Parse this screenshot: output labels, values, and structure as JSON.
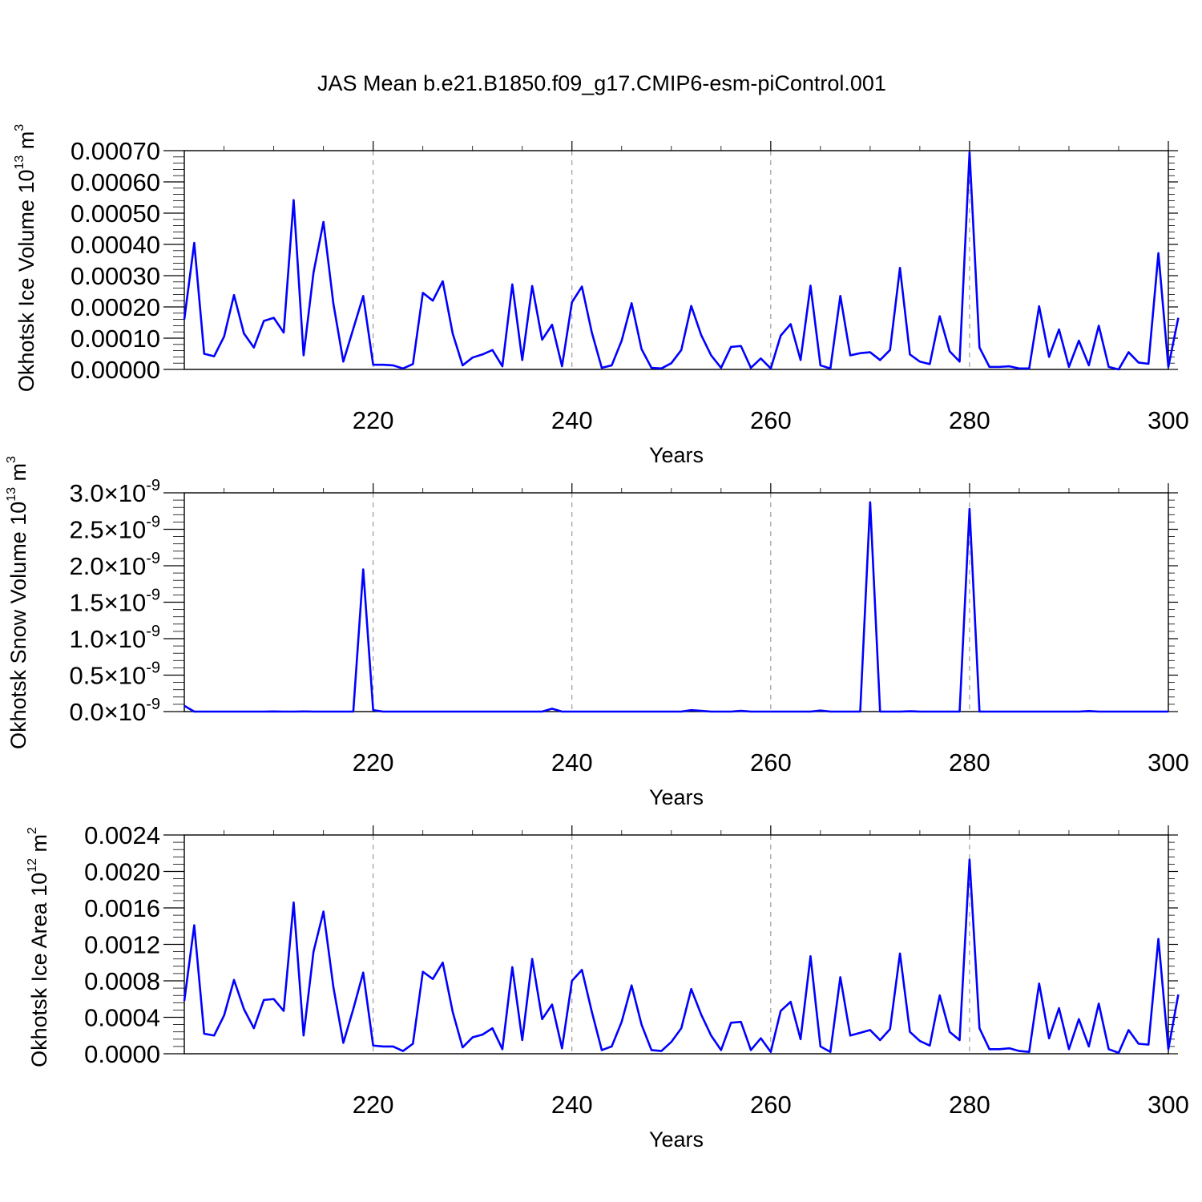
{
  "title": "JAS Mean b.e21.B1850.f09_g17.CMIP6-esm-piControl.001",
  "line_color": "#0000ff",
  "chart_data": [
    {
      "type": "line",
      "id": "ice-volume",
      "xlabel": "Years",
      "ylabel": "Okhotsk Ice Volume 10",
      "ylabel_exp": "13",
      "ylabel_unit": " m",
      "ylabel_unit_exp": "3",
      "xlim": [
        201,
        300
      ],
      "ylim": [
        0,
        0.0007
      ],
      "x_ticks": [
        "220",
        "240",
        "260",
        "280",
        "300"
      ],
      "y_ticks": [
        "0.00000",
        "0.00010",
        "0.00020",
        "0.00030",
        "0.00040",
        "0.00050",
        "0.00060",
        "0.00070"
      ],
      "grid": "dashed vertical at major x ticks",
      "x_start": 201,
      "values": [
        0.00016,
        0.000405,
        5e-05,
        4.2e-05,
        0.000105,
        0.000238,
        0.000115,
        7e-05,
        0.000155,
        0.000165,
        0.000118,
        0.000542,
        4.5e-05,
        0.00031,
        0.000472,
        0.00021,
        2.5e-05,
        0.00013,
        0.000235,
        1.5e-05,
        1.5e-05,
        1.3e-05,
        3e-06,
        1.7e-05,
        0.000245,
        0.00022,
        0.000282,
        0.000115,
        1.3e-05,
        3.8e-05,
        4.8e-05,
        6.2e-05,
        1e-05,
        0.000272,
        3e-05,
        0.000267,
        9.5e-05,
        0.000143,
        1e-05,
        0.000215,
        0.000265,
        0.000118,
        5e-06,
        1.3e-05,
        9.2e-05,
        0.000212,
        6.5e-05,
        5e-06,
        3e-06,
        2e-05,
        6.2e-05,
        0.000203,
        0.00011,
        4.5e-05,
        5e-06,
        7.2e-05,
        7.5e-05,
        5e-06,
        3.5e-05,
        3e-06,
        0.000108,
        0.000145,
        3e-05,
        0.000268,
        1.3e-05,
        3e-06,
        0.000235,
        4.5e-05,
        5.2e-05,
        5.5e-05,
        3e-05,
        6.2e-05,
        0.000325,
        4.8e-05,
        2.5e-05,
        1.7e-05,
        0.00017,
        5.8e-05,
        2.5e-05,
        0.000695,
        7e-05,
        8e-06,
        8e-06,
        1e-05,
        3e-06,
        3e-06,
        0.000202,
        4e-05,
        0.000128,
        8e-06,
        9.2e-05,
        1.3e-05,
        0.00014,
        8e-06,
        0.0,
        5.5e-05,
        2.2e-05,
        1.8e-05,
        0.000372,
        8e-06,
        0.000165
      ]
    },
    {
      "type": "line",
      "id": "snow-volume",
      "xlabel": "Years",
      "ylabel": "Okhotsk Snow Volume 10",
      "ylabel_exp": "13",
      "ylabel_unit": " m",
      "ylabel_unit_exp": "3",
      "xlim": [
        201,
        300
      ],
      "ylim": [
        0,
        3e-09
      ],
      "x_ticks": [
        "220",
        "240",
        "260",
        "280",
        "300"
      ],
      "y_ticks": [
        "0.0",
        "0.5",
        "1.0",
        "1.5",
        "2.0",
        "2.5",
        "3.0"
      ],
      "y_tick_suffix": "×10",
      "y_tick_exp": "-9",
      "grid": "dashed vertical at major x ticks",
      "x_start": 201,
      "values": [
        8e-11,
        0,
        0,
        0,
        0,
        0,
        0,
        0,
        0,
        2e-12,
        0,
        0,
        2e-12,
        0,
        0,
        0,
        0,
        0,
        1.95e-09,
        2e-11,
        0,
        0,
        0,
        0,
        0,
        0,
        0,
        0,
        0,
        0,
        0,
        0,
        0,
        0,
        0,
        0,
        0,
        4e-11,
        0,
        0,
        0,
        0,
        0,
        0,
        0,
        0,
        0,
        0,
        0,
        0,
        0,
        2e-11,
        1e-11,
        0,
        0,
        0,
        1e-11,
        0,
        0,
        0,
        0,
        0,
        0,
        0,
        1.5e-11,
        0,
        0,
        0,
        0,
        2.87e-09,
        0,
        0,
        0,
        5e-12,
        0,
        0,
        0,
        0,
        0,
        2.78e-09,
        0,
        0,
        0,
        0,
        0,
        0,
        0,
        0,
        0,
        0,
        0,
        8e-12,
        0,
        0,
        0,
        0,
        0,
        0,
        0,
        0
      ]
    },
    {
      "type": "line",
      "id": "ice-area",
      "xlabel": "Years",
      "ylabel": "Okhotsk Ice Area 10",
      "ylabel_exp": "12",
      "ylabel_unit": " m",
      "ylabel_unit_exp": "2",
      "xlim": [
        201,
        300
      ],
      "ylim": [
        0,
        0.0024
      ],
      "x_ticks": [
        "220",
        "240",
        "260",
        "280",
        "300"
      ],
      "y_ticks": [
        "0.0000",
        "0.0004",
        "0.0008",
        "0.0012",
        "0.0016",
        "0.0020",
        "0.0024"
      ],
      "grid": "dashed vertical at major x ticks",
      "x_start": 201,
      "values": [
        0.00058,
        0.00141,
        0.00022,
        0.0002,
        0.00042,
        0.00081,
        0.00049,
        0.00028,
        0.00059,
        0.0006,
        0.00047,
        0.00166,
        0.0002,
        0.00112,
        0.00156,
        0.00073,
        0.00012,
        0.00049,
        0.00089,
        9e-05,
        8e-05,
        8e-05,
        3e-05,
        0.00011,
        0.0009,
        0.00082,
        0.001,
        0.00046,
        7e-05,
        0.00018,
        0.00021,
        0.00028,
        5e-05,
        0.00095,
        0.00015,
        0.00104,
        0.00038,
        0.00054,
        6e-05,
        0.0008,
        0.00092,
        0.00046,
        4e-05,
        8e-05,
        0.00035,
        0.00075,
        0.00032,
        4e-05,
        3e-05,
        0.00013,
        0.00028,
        0.00071,
        0.00043,
        0.0002,
        4e-05,
        0.00034,
        0.00035,
        4e-05,
        0.00017,
        2e-05,
        0.00047,
        0.00057,
        0.00016,
        0.00107,
        8e-05,
        2e-05,
        0.00084,
        0.0002,
        0.00023,
        0.00026,
        0.00015,
        0.00027,
        0.0011,
        0.00024,
        0.00014,
        9e-05,
        0.00064,
        0.00024,
        0.00015,
        0.00213,
        0.00028,
        5e-05,
        5e-05,
        6e-05,
        3e-05,
        2e-05,
        0.00077,
        0.00017,
        0.0005,
        5e-05,
        0.00038,
        8e-05,
        0.00055,
        5e-05,
        1e-05,
        0.00026,
        0.00011,
        0.0001,
        0.00126,
        5e-05,
        0.00065
      ]
    }
  ]
}
